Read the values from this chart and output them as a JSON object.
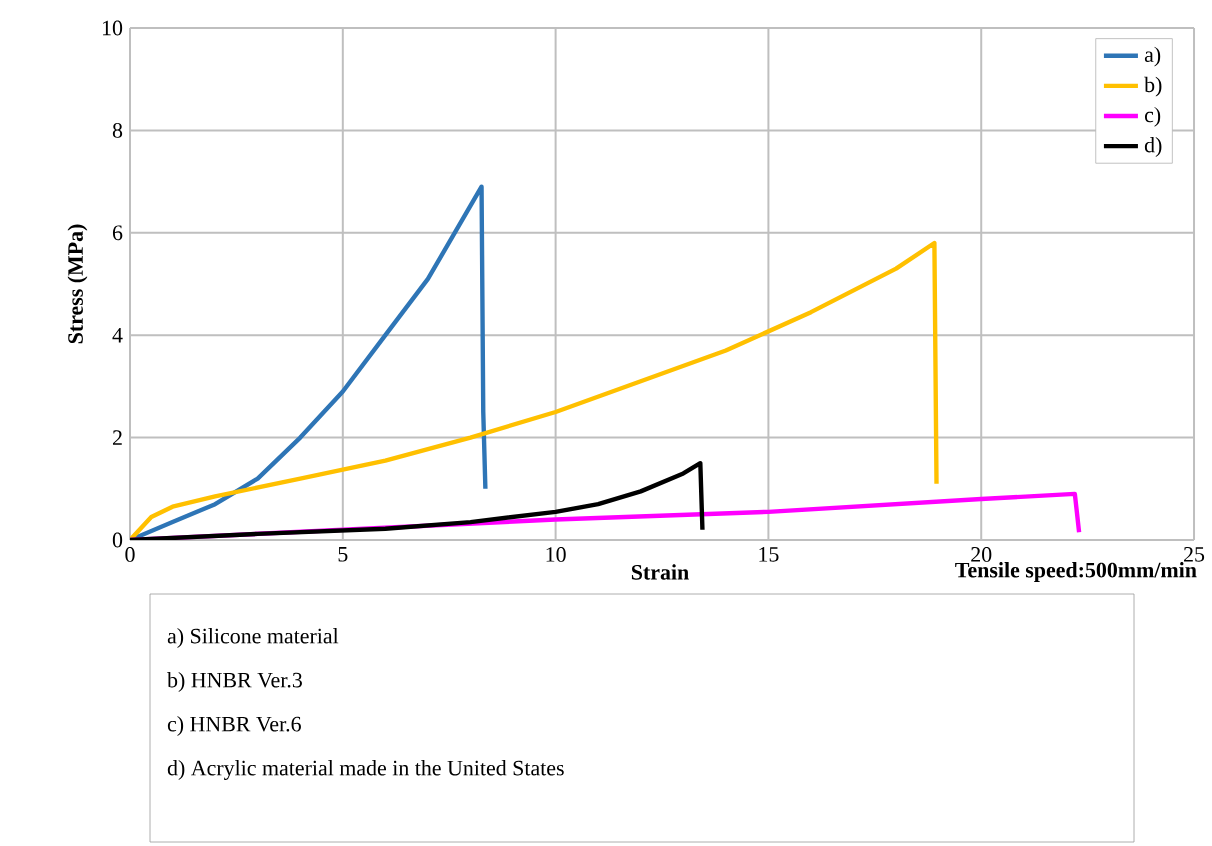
{
  "chart_data": {
    "type": "line",
    "xlabel": "Strain",
    "ylabel": "Stress (MPa)",
    "xlim": [
      0,
      25
    ],
    "xticks": [
      0,
      5,
      10,
      15,
      20,
      25
    ],
    "ylim": [
      0,
      10
    ],
    "yticks": [
      0,
      2,
      4,
      6,
      8,
      10
    ],
    "grid": true,
    "legend": "top right",
    "marker": "none",
    "line_style": "solid",
    "series": [
      {
        "name": "a)",
        "color": "#2e75b6",
        "x": [
          0,
          1,
          2,
          3,
          4,
          5,
          6,
          7,
          8.26,
          8.3,
          8.35
        ],
        "values": [
          0,
          0.35,
          0.7,
          1.2,
          2.0,
          2.9,
          4.0,
          5.1,
          6.9,
          2.5,
          1.0
        ]
      },
      {
        "name": "b)",
        "color": "#ffc000",
        "x": [
          0,
          0.5,
          1,
          2,
          4,
          6,
          8,
          10,
          12,
          14,
          16,
          18,
          18.9,
          18.95
        ],
        "values": [
          0,
          0.45,
          0.65,
          0.85,
          1.2,
          1.55,
          2.0,
          2.5,
          3.1,
          3.7,
          4.45,
          5.3,
          5.8,
          1.1
        ]
      },
      {
        "name": "c)",
        "color": "#ff00ff",
        "x": [
          0,
          5,
          10,
          15,
          20,
          22.2,
          22.3
        ],
        "values": [
          0,
          0.2,
          0.4,
          0.55,
          0.8,
          0.9,
          0.15
        ]
      },
      {
        "name": "d)",
        "color": "#000000",
        "x": [
          0,
          3,
          6,
          8,
          10,
          11,
          12,
          13,
          13.4,
          13.45
        ],
        "values": [
          0,
          0.12,
          0.22,
          0.35,
          0.55,
          0.7,
          0.95,
          1.3,
          1.5,
          0.2
        ]
      }
    ],
    "annotations": [
      "Tensile speed:500mm/min",
      "a) Silicone material",
      "b) HNBR Ver.3",
      "c) HNBR Ver.6",
      "d) Acrylic material made in the United States"
    ]
  }
}
